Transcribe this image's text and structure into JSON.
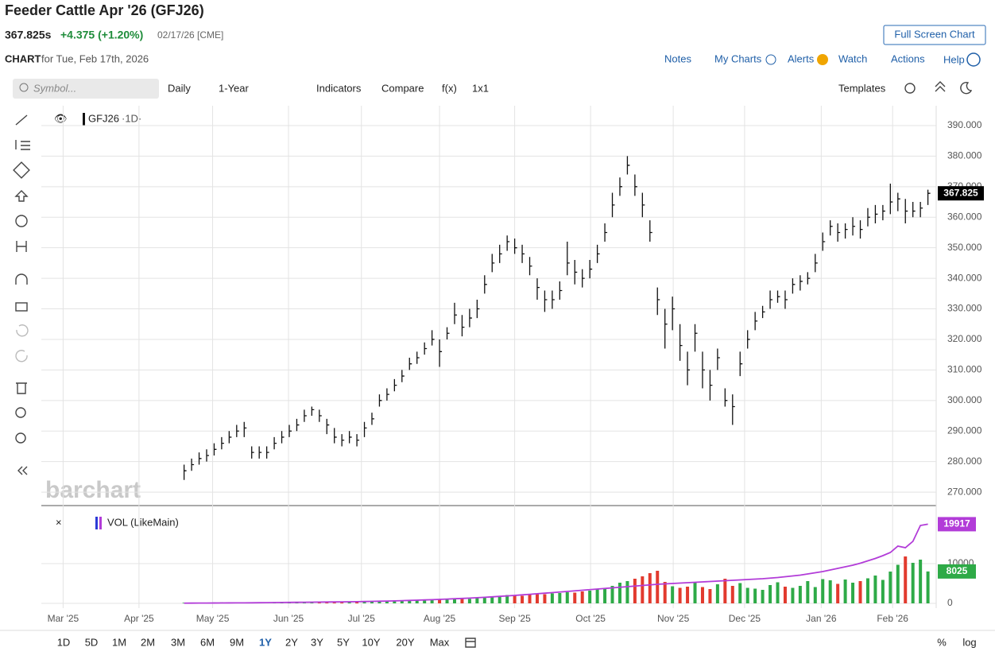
{
  "header": {
    "title": "Feeder Cattle Apr '26 (GFJ26)",
    "price": "367.825s",
    "change": "+4.375 (+1.20%)",
    "date_exchange": "02/17/26 [CME]",
    "full_screen": "Full Screen Chart"
  },
  "subheader": {
    "label": "CHART",
    "date": "for Tue, Feb 17th, 2026"
  },
  "links": [
    "Notes",
    "My Charts",
    "Alerts",
    "Watch",
    "Actions",
    "Help"
  ],
  "toolbar": {
    "symbol_placeholder": "Symbol...",
    "interval": "Daily",
    "period": "1-Year",
    "indicators": "Indicators",
    "compare": "Compare",
    "fx": "f(x)",
    "layout": "1x1",
    "templates": "Templates"
  },
  "watermark": "barchart",
  "ranges": [
    "1D",
    "5D",
    "1M",
    "2M",
    "3M",
    "6M",
    "9M",
    "1Y",
    "2Y",
    "3Y",
    "5Y",
    "10Y",
    "20Y",
    "Max"
  ],
  "active_range_index": 7,
  "scale_options": [
    "%",
    "log"
  ],
  "chart_data": [
    {
      "type": "ohlc",
      "title": "GFJ26",
      "interval": "·1D·",
      "color": "#111111",
      "grid": true,
      "values": [
        277,
        279,
        281,
        282,
        284,
        286,
        288,
        290,
        291,
        283,
        283,
        283,
        286,
        288,
        290,
        292,
        295,
        297,
        295,
        292,
        288,
        287,
        288,
        287,
        291,
        294,
        300,
        302,
        305,
        308,
        312,
        314,
        317,
        320,
        316,
        322,
        328,
        324,
        327,
        330,
        338,
        345,
        348,
        352,
        350,
        348,
        344,
        337,
        333,
        333,
        336,
        345,
        342,
        340,
        343,
        348,
        355,
        364,
        370,
        377,
        370,
        364,
        355,
        333,
        325,
        330,
        318,
        310,
        322,
        310,
        305,
        314,
        300,
        298,
        312,
        320,
        326,
        329,
        333,
        334,
        333,
        338,
        339,
        340,
        345,
        352,
        357,
        355,
        356,
        357,
        356,
        360,
        361,
        362,
        365,
        366,
        362,
        362,
        363,
        367.825
      ],
      "high": [
        279,
        281,
        283,
        284,
        286,
        288,
        290,
        292,
        293,
        285,
        285,
        285,
        288,
        290,
        292,
        294,
        297,
        298,
        297,
        294,
        291,
        289,
        290,
        289,
        293,
        296,
        302,
        304,
        307,
        310,
        314,
        316,
        319,
        323,
        320,
        324,
        332,
        328,
        330,
        333,
        341,
        348,
        351,
        354,
        353,
        351,
        347,
        340,
        336,
        336,
        339,
        352,
        346,
        343,
        346,
        351,
        358,
        368,
        373,
        380,
        374,
        368,
        359,
        337,
        330,
        334,
        325,
        316,
        325,
        316,
        310,
        317,
        304,
        302,
        316,
        323,
        329,
        331,
        336,
        336,
        336,
        340,
        341,
        342,
        348,
        355,
        359,
        358,
        358,
        360,
        359,
        363,
        364,
        364,
        371,
        368,
        366,
        365,
        365,
        369
      ],
      "low": [
        274,
        277,
        279,
        280,
        282,
        284,
        286,
        288,
        288,
        281,
        281,
        281,
        284,
        286,
        288,
        290,
        293,
        295,
        293,
        289,
        286,
        285,
        286,
        285,
        288,
        292,
        298,
        300,
        303,
        306,
        310,
        312,
        315,
        318,
        311,
        320,
        325,
        321,
        324,
        327,
        335,
        342,
        345,
        349,
        348,
        345,
        341,
        333,
        329,
        330,
        333,
        341,
        338,
        337,
        340,
        345,
        352,
        360,
        367,
        374,
        367,
        360,
        352,
        328,
        317,
        323,
        313,
        305,
        316,
        304,
        300,
        310,
        298,
        292,
        308,
        317,
        323,
        327,
        330,
        332,
        330,
        335,
        336,
        338,
        342,
        349,
        354,
        352,
        353,
        354,
        353,
        357,
        358,
        359,
        361,
        362,
        358,
        360,
        360,
        364
      ],
      "ylim": [
        265.6,
        396.5
      ],
      "yticks": [
        {
          "value": 270,
          "label": "270.000"
        },
        {
          "value": 280,
          "label": "280.000"
        },
        {
          "value": 290,
          "label": "290.000"
        },
        {
          "value": 300,
          "label": "300.000"
        },
        {
          "value": 310,
          "label": "310.000"
        },
        {
          "value": 320,
          "label": "320.000"
        },
        {
          "value": 330,
          "label": "330.000"
        },
        {
          "value": 340,
          "label": "340.000"
        },
        {
          "value": 350,
          "label": "350.000"
        },
        {
          "value": 360,
          "label": "360.000"
        },
        {
          "value": 370,
          "label": "370.000"
        },
        {
          "value": 380,
          "label": "380.000"
        },
        {
          "value": 390,
          "label": "390.000"
        }
      ],
      "xlim": [
        -19,
        100.1
      ],
      "xticks": [
        {
          "value": -16.1,
          "label": "Mar '25"
        },
        {
          "value": -6,
          "label": "Apr '25"
        },
        {
          "value": 3.8,
          "label": "May '25"
        },
        {
          "value": 13.9,
          "label": "Jun '25"
        },
        {
          "value": 23.6,
          "label": "Jul '25"
        },
        {
          "value": 34,
          "label": "Aug '25"
        },
        {
          "value": 44,
          "label": "Sep '25"
        },
        {
          "value": 54.1,
          "label": "Oct '25"
        },
        {
          "value": 65.1,
          "label": "Nov '25"
        },
        {
          "value": 74.6,
          "label": "Dec '25"
        },
        {
          "value": 84.8,
          "label": "Jan '26"
        },
        {
          "value": 94.3,
          "label": "Feb '26"
        }
      ]
    },
    {
      "type": "bar",
      "title": "VOL (LikeMain)",
      "ylim": [
        0,
        23800
      ],
      "yticks": [
        0,
        10000
      ],
      "xlim": [
        -19,
        100.1
      ],
      "series": [
        {
          "type": "bar",
          "up_color": "#2eaa47",
          "down_color": "#e23a2e",
          "values": [
            150,
            120,
            200,
            180,
            220,
            250,
            200,
            230,
            260,
            300,
            280,
            250,
            300,
            320,
            350,
            330,
            380,
            400,
            360,
            350,
            420,
            400,
            450,
            480,
            500,
            520,
            560,
            600,
            650,
            700,
            750,
            800,
            850,
            900,
            1000,
            950,
            1100,
            1200,
            1150,
            1300,
            1500,
            1700,
            1900,
            2100,
            2000,
            1900,
            2200,
            2400,
            2300,
            2500,
            2600,
            2800,
            2700,
            3000,
            3200,
            3500,
            3900,
            4400,
            5200,
            5600,
            6200,
            6800,
            7600,
            8200,
            5400,
            4300,
            3900,
            4200,
            5200,
            4100,
            3600,
            4800,
            6200,
            4400,
            5100,
            3900,
            3700,
            3400,
            4600,
            5300,
            4200,
            3900,
            4400,
            5600,
            4100,
            6100,
            5800,
            4900,
            6000,
            5200,
            5600,
            6300,
            7000,
            5900,
            8000,
            9700,
            11800,
            10200,
            11000,
            8025
          ]
        },
        {
          "type": "line",
          "color": "#b23cd8",
          "values": [
            50,
            60,
            70,
            80,
            90,
            100,
            110,
            120,
            130,
            140,
            160,
            180,
            200,
            220,
            240,
            260,
            280,
            300,
            320,
            340,
            360,
            380,
            400,
            430,
            460,
            500,
            540,
            580,
            620,
            680,
            740,
            800,
            860,
            920,
            1000,
            1080,
            1160,
            1240,
            1320,
            1420,
            1520,
            1640,
            1760,
            1880,
            2000,
            2140,
            2280,
            2420,
            2560,
            2700,
            2850,
            3000,
            3150,
            3300,
            3450,
            3600,
            3750,
            3900,
            4050,
            4200,
            4350,
            4500,
            4650,
            4800,
            4900,
            5000,
            5100,
            5200,
            5300,
            5400,
            5500,
            5600,
            5700,
            5800,
            5900,
            6000,
            6100,
            6200,
            6350,
            6500,
            6700,
            6900,
            7100,
            7400,
            7700,
            8000,
            8400,
            8800,
            9200,
            9600,
            10100,
            10700,
            11300,
            12000,
            12800,
            14400,
            14000,
            15600,
            19600,
            19917
          ]
        }
      ]
    }
  ]
}
